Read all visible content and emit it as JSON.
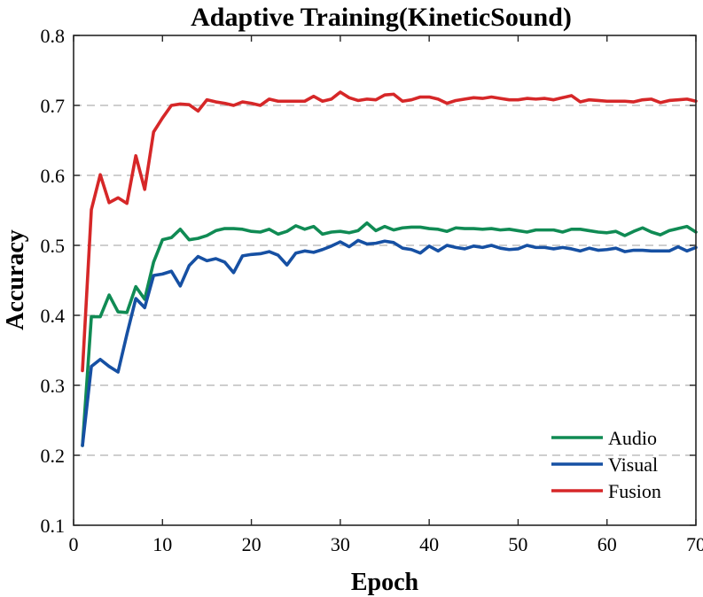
{
  "chart_data": {
    "type": "line",
    "title": "Adaptive Training(KineticSound)",
    "xlabel": "Epoch",
    "ylabel": "Accuracy",
    "xlim": [
      0,
      70
    ],
    "ylim": [
      0.1,
      0.8
    ],
    "xticks": [
      0,
      10,
      20,
      30,
      40,
      50,
      60,
      70
    ],
    "yticks": [
      0.1,
      0.2,
      0.3,
      0.4,
      0.5,
      0.6,
      0.7,
      0.8
    ],
    "xtick_labels": [
      "0",
      "10",
      "20",
      "30",
      "40",
      "50",
      "60",
      "70"
    ],
    "ytick_labels": [
      "0.1",
      "0.2",
      "0.3",
      "0.4",
      "0.5",
      "0.6",
      "0.7",
      "0.8"
    ],
    "grid": "horizontal dashed",
    "legend_position": "bottom-right",
    "x": [
      1,
      2,
      3,
      4,
      5,
      6,
      7,
      8,
      9,
      10,
      11,
      12,
      13,
      14,
      15,
      16,
      17,
      18,
      19,
      20,
      21,
      22,
      23,
      24,
      25,
      26,
      27,
      28,
      29,
      30,
      31,
      32,
      33,
      34,
      35,
      36,
      37,
      38,
      39,
      40,
      41,
      42,
      43,
      44,
      45,
      46,
      47,
      48,
      49,
      50,
      51,
      52,
      53,
      54,
      55,
      56,
      57,
      58,
      59,
      60,
      61,
      62,
      63,
      64,
      65,
      66,
      67,
      68,
      69,
      70
    ],
    "series": [
      {
        "name": "Audio",
        "color": "#108b54",
        "values": [
          0.214,
          0.398,
          0.398,
          0.429,
          0.405,
          0.404,
          0.441,
          0.423,
          0.476,
          0.508,
          0.511,
          0.523,
          0.508,
          0.51,
          0.514,
          0.521,
          0.524,
          0.524,
          0.523,
          0.52,
          0.519,
          0.523,
          0.516,
          0.52,
          0.528,
          0.523,
          0.527,
          0.516,
          0.519,
          0.52,
          0.518,
          0.521,
          0.532,
          0.521,
          0.527,
          0.522,
          0.525,
          0.526,
          0.526,
          0.524,
          0.523,
          0.52,
          0.525,
          0.524,
          0.524,
          0.523,
          0.524,
          0.522,
          0.523,
          0.521,
          0.519,
          0.522,
          0.522,
          0.522,
          0.519,
          0.523,
          0.523,
          0.521,
          0.519,
          0.518,
          0.52,
          0.514,
          0.52,
          0.525,
          0.519,
          0.515,
          0.521,
          0.524,
          0.527,
          0.519
        ]
      },
      {
        "name": "Visual",
        "color": "#1650a3",
        "values": [
          0.214,
          0.327,
          0.337,
          0.327,
          0.319,
          0.373,
          0.424,
          0.411,
          0.457,
          0.459,
          0.463,
          0.442,
          0.471,
          0.484,
          0.478,
          0.481,
          0.476,
          0.461,
          0.485,
          0.487,
          0.488,
          0.491,
          0.486,
          0.472,
          0.489,
          0.492,
          0.49,
          0.494,
          0.499,
          0.505,
          0.498,
          0.507,
          0.502,
          0.503,
          0.506,
          0.504,
          0.496,
          0.494,
          0.489,
          0.499,
          0.492,
          0.5,
          0.497,
          0.495,
          0.499,
          0.497,
          0.5,
          0.496,
          0.494,
          0.495,
          0.5,
          0.497,
          0.497,
          0.495,
          0.497,
          0.495,
          0.492,
          0.496,
          0.493,
          0.494,
          0.496,
          0.491,
          0.493,
          0.493,
          0.492,
          0.492,
          0.492,
          0.498,
          0.492,
          0.497
        ]
      },
      {
        "name": "Fusion",
        "color": "#d62728",
        "values": [
          0.321,
          0.551,
          0.601,
          0.561,
          0.568,
          0.56,
          0.628,
          0.58,
          0.662,
          0.682,
          0.7,
          0.702,
          0.701,
          0.692,
          0.708,
          0.705,
          0.703,
          0.7,
          0.705,
          0.703,
          0.7,
          0.709,
          0.706,
          0.706,
          0.706,
          0.706,
          0.713,
          0.706,
          0.709,
          0.719,
          0.711,
          0.707,
          0.709,
          0.708,
          0.715,
          0.716,
          0.706,
          0.708,
          0.712,
          0.712,
          0.709,
          0.703,
          0.707,
          0.709,
          0.711,
          0.71,
          0.712,
          0.71,
          0.708,
          0.708,
          0.71,
          0.709,
          0.71,
          0.708,
          0.711,
          0.714,
          0.705,
          0.708,
          0.707,
          0.706,
          0.706,
          0.706,
          0.705,
          0.708,
          0.709,
          0.704,
          0.707,
          0.708,
          0.709,
          0.706
        ]
      }
    ]
  }
}
